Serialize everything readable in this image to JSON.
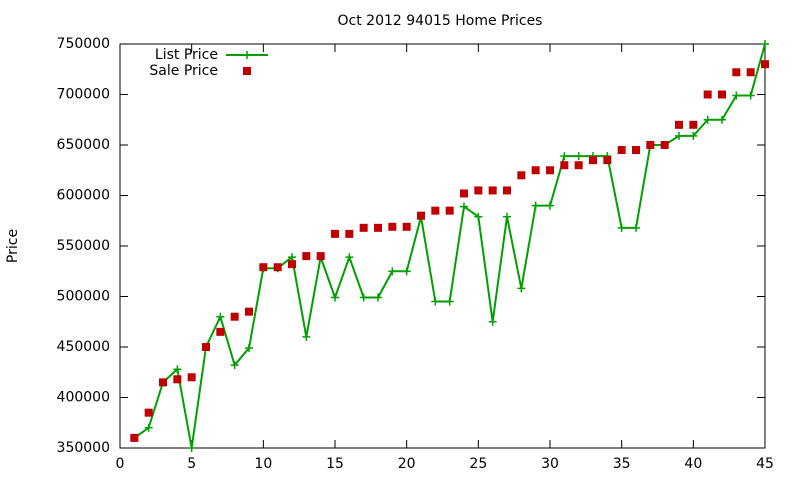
{
  "chart_data": {
    "type": "line",
    "title": "Oct 2012 94015 Home Prices",
    "ylabel": "Price",
    "x": [
      1,
      2,
      3,
      4,
      5,
      6,
      7,
      8,
      9,
      10,
      11,
      12,
      13,
      14,
      15,
      16,
      17,
      18,
      19,
      20,
      21,
      22,
      23,
      24,
      25,
      26,
      27,
      28,
      29,
      30,
      31,
      32,
      33,
      34,
      35,
      36,
      37,
      38,
      39,
      40,
      41,
      42,
      43,
      44,
      45
    ],
    "series": [
      {
        "name": "List Price",
        "color": "#00a000",
        "style": "linespoints",
        "values": [
          360000,
          370000,
          415000,
          428000,
          350000,
          450000,
          480000,
          432000,
          449000,
          528000,
          528000,
          539000,
          460000,
          539000,
          499000,
          539000,
          499000,
          499000,
          525000,
          525000,
          579000,
          495000,
          495000,
          589000,
          579000,
          475000,
          579000,
          508000,
          590000,
          590000,
          639000,
          639000,
          639000,
          639000,
          568000,
          568000,
          650000,
          650000,
          659000,
          659000,
          675000,
          675000,
          699000,
          699000,
          750000
        ]
      },
      {
        "name": "Sale Price",
        "color": "#c00000",
        "style": "points",
        "values": [
          360000,
          385000,
          415000,
          418000,
          420000,
          450000,
          465000,
          480000,
          485000,
          529000,
          529000,
          532000,
          540000,
          540000,
          562000,
          562000,
          568000,
          568000,
          569000,
          569000,
          580000,
          585000,
          585000,
          602000,
          605000,
          605000,
          605000,
          620000,
          625000,
          625000,
          630000,
          630000,
          635000,
          635000,
          645000,
          645000,
          650000,
          650000,
          670000,
          670000,
          700000,
          700000,
          722000,
          722000,
          730000
        ]
      }
    ],
    "xlim": [
      0,
      45
    ],
    "xticks": [
      0,
      5,
      10,
      15,
      20,
      25,
      30,
      35,
      40,
      45
    ],
    "ylim": [
      350000,
      750000
    ],
    "yticks": [
      350000,
      400000,
      450000,
      500000,
      550000,
      600000,
      650000,
      700000,
      750000
    ],
    "legend": "top-left"
  }
}
